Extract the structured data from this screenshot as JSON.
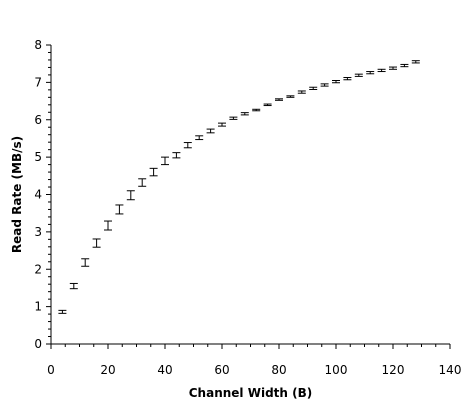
{
  "chart_data": {
    "type": "scatter",
    "xlabel": "Channel Width (B)",
    "ylabel": "Read Rate (MB/s)",
    "xlim": [
      0,
      140
    ],
    "ylim": [
      0,
      8
    ],
    "x_ticks": [
      0,
      20,
      40,
      60,
      80,
      100,
      120,
      140
    ],
    "y_ticks": [
      0,
      1,
      2,
      3,
      4,
      5,
      6,
      7,
      8
    ],
    "grid": false,
    "legend": "none",
    "marker": "error-bar",
    "color": "#000000",
    "points": [
      {
        "x": 4,
        "y": 0.86,
        "err": 0.04
      },
      {
        "x": 8,
        "y": 1.55,
        "err": 0.07
      },
      {
        "x": 12,
        "y": 2.18,
        "err": 0.1
      },
      {
        "x": 16,
        "y": 2.7,
        "err": 0.11
      },
      {
        "x": 20,
        "y": 3.17,
        "err": 0.12
      },
      {
        "x": 24,
        "y": 3.6,
        "err": 0.12
      },
      {
        "x": 28,
        "y": 3.98,
        "err": 0.12
      },
      {
        "x": 32,
        "y": 4.32,
        "err": 0.1
      },
      {
        "x": 36,
        "y": 4.6,
        "err": 0.1
      },
      {
        "x": 40,
        "y": 4.9,
        "err": 0.1
      },
      {
        "x": 44,
        "y": 5.05,
        "err": 0.07
      },
      {
        "x": 48,
        "y": 5.32,
        "err": 0.07
      },
      {
        "x": 52,
        "y": 5.52,
        "err": 0.05
      },
      {
        "x": 56,
        "y": 5.7,
        "err": 0.05
      },
      {
        "x": 60,
        "y": 5.87,
        "err": 0.04
      },
      {
        "x": 64,
        "y": 6.04,
        "err": 0.03
      },
      {
        "x": 68,
        "y": 6.16,
        "err": 0.03
      },
      {
        "x": 72,
        "y": 6.26,
        "err": 0.02
      },
      {
        "x": 76,
        "y": 6.4,
        "err": 0.02
      },
      {
        "x": 80,
        "y": 6.54,
        "err": 0.02
      },
      {
        "x": 84,
        "y": 6.62,
        "err": 0.02
      },
      {
        "x": 88,
        "y": 6.74,
        "err": 0.03
      },
      {
        "x": 92,
        "y": 6.84,
        "err": 0.03
      },
      {
        "x": 96,
        "y": 6.93,
        "err": 0.03
      },
      {
        "x": 100,
        "y": 7.02,
        "err": 0.03
      },
      {
        "x": 104,
        "y": 7.1,
        "err": 0.03
      },
      {
        "x": 108,
        "y": 7.19,
        "err": 0.03
      },
      {
        "x": 112,
        "y": 7.26,
        "err": 0.03
      },
      {
        "x": 116,
        "y": 7.32,
        "err": 0.03
      },
      {
        "x": 120,
        "y": 7.38,
        "err": 0.03
      },
      {
        "x": 124,
        "y": 7.45,
        "err": 0.03
      },
      {
        "x": 128,
        "y": 7.55,
        "err": 0.03
      }
    ]
  }
}
